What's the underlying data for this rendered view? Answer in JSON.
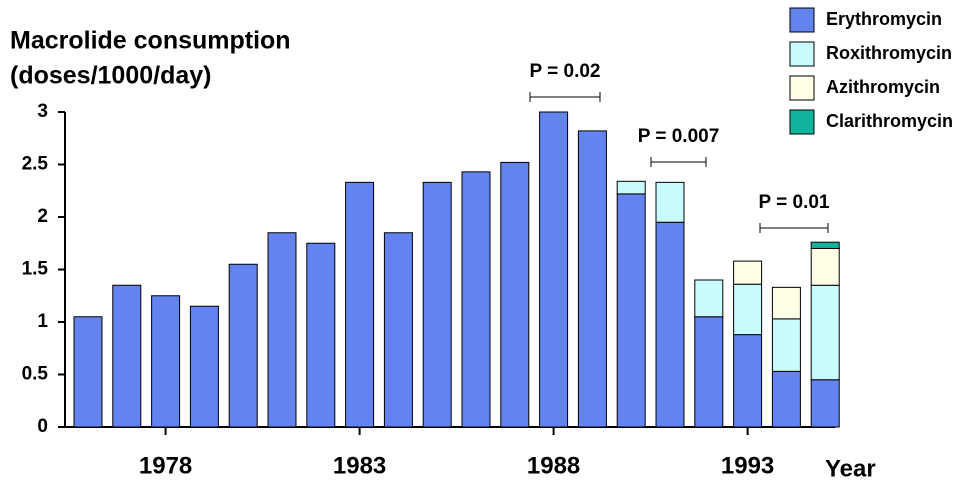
{
  "chart_data": {
    "type": "stacked_bar",
    "y_label": [
      "Macrolide consumption",
      "(doses/1000/day)"
    ],
    "x_label": "Year",
    "categories": [
      null,
      null,
      "1978",
      null,
      null,
      null,
      null,
      "1983",
      null,
      null,
      null,
      null,
      "1988",
      null,
      null,
      null,
      null,
      "1993",
      null,
      null
    ],
    "series": [
      {
        "name": "Erythromycin",
        "color": "#6283f0",
        "values": [
          1.05,
          1.35,
          1.25,
          1.15,
          1.55,
          1.85,
          1.75,
          2.33,
          1.85,
          2.33,
          2.43,
          2.52,
          3.0,
          2.82,
          2.22,
          1.95,
          1.05,
          0.88,
          0.53,
          0.45
        ]
      },
      {
        "name": "Roxithromycin",
        "color": "#c8fcfc",
        "values": [
          0,
          0,
          0,
          0,
          0,
          0,
          0,
          0,
          0,
          0,
          0,
          0,
          0,
          0,
          0.12,
          0.38,
          0.35,
          0.48,
          0.5,
          0.9
        ]
      },
      {
        "name": "Azithromycin",
        "color": "#fffde6",
        "values": [
          0,
          0,
          0,
          0,
          0,
          0,
          0,
          0,
          0,
          0,
          0,
          0,
          0,
          0,
          0,
          0,
          0,
          0.22,
          0.3,
          0.35
        ]
      },
      {
        "name": "Clarithromycin",
        "color": "#12b39c",
        "values": [
          0,
          0,
          0,
          0,
          0,
          0,
          0,
          0,
          0,
          0,
          0,
          0,
          0,
          0,
          0,
          0,
          0,
          0,
          0,
          0.06
        ]
      }
    ],
    "ylim": [
      0,
      3
    ],
    "yticks": [
      0,
      0.5,
      1,
      1.5,
      2,
      2.5,
      3
    ],
    "annotations": [
      "P = 0.02",
      "P = 0.007",
      "P = 0.01"
    ],
    "legend": "top-right"
  }
}
